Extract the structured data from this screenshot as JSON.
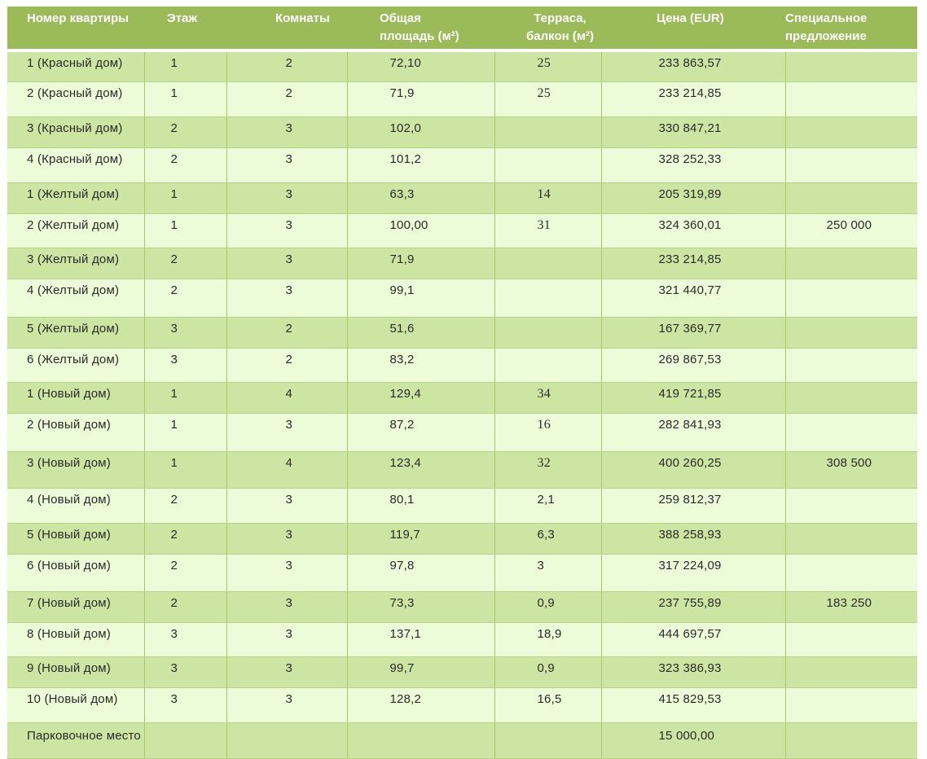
{
  "headers": [
    "Номер квартиры",
    "Этаж",
    "Комнаты",
    "Общая площадь (м²)",
    "Терраса, балкон  (м²)",
    "Цена (EUR)",
    "Специальное предложение"
  ],
  "rows": [
    [
      "1 (Красный  дом)",
      "1",
      "2",
      "72,10",
      "25",
      "233 863,57",
      ""
    ],
    [
      "2 (Красный  дом)",
      "1",
      "2",
      "71,9",
      "25",
      "233 214,85",
      ""
    ],
    [
      "3 (Красный  дом)",
      "2",
      "3",
      "102,0",
      "",
      "330 847,21",
      ""
    ],
    [
      "4 (Красный  дом)",
      "2",
      "3",
      "101,2",
      "",
      "328 252,33",
      ""
    ],
    [
      "1 (Желтый  дом)",
      "1",
      "3",
      "63,3",
      "14",
      "205 319,89",
      ""
    ],
    [
      "2 (Желтый  дом)",
      "1",
      "3",
      "100,00",
      "31",
      "324 360,01",
      "250 000"
    ],
    [
      "3 (Желтый  дом)",
      "2",
      "3",
      "71,9",
      "",
      "233 214,85",
      ""
    ],
    [
      "4 (Желтый  дом)",
      "2",
      "3",
      "99,1",
      "",
      "321 440,77",
      ""
    ],
    [
      "5 (Желтый  дом)",
      "3",
      "2",
      "51,6",
      "",
      "167 369,77",
      ""
    ],
    [
      "6 (Желтый  дом)",
      "3",
      "2",
      "83,2",
      "",
      "269 867,53",
      ""
    ],
    [
      "1 (Новый дом)",
      "1",
      "4",
      "129,4",
      "34",
      "419 721,85",
      ""
    ],
    [
      "2 (Новый дом)",
      "1",
      "3",
      "87,2",
      "16",
      "282 841,93",
      ""
    ],
    [
      "3 (Новый дом)",
      "1",
      "4",
      "123,4",
      "32",
      "400 260,25",
      "308 500"
    ],
    [
      "4 (Новый дом)",
      "2",
      "3",
      "80,1",
      "2,1",
      "259 812,37",
      ""
    ],
    [
      "5 (Новый дом)",
      "2",
      "3",
      "119,7",
      "6,3",
      "388 258,93",
      ""
    ],
    [
      "6 (Новый дом)",
      "2",
      "3",
      "97,8",
      "3",
      "317 224,09",
      ""
    ],
    [
      "7 (Новый дом)",
      "2",
      "3",
      "73,3",
      "0,9",
      "237 755,89",
      "183 250"
    ],
    [
      "8 (Новый дом)",
      "3",
      "3",
      "137,1",
      "18,9",
      "444 697,57",
      ""
    ],
    [
      "9 (Новый дом)",
      "3",
      "3",
      "99,7",
      "0,9",
      "323 386,93",
      ""
    ],
    [
      "10 (Новый дом)",
      "3",
      "3",
      "128,2",
      "16,5",
      "415 829,53",
      ""
    ],
    [
      "Парковочное место",
      "",
      "",
      "",
      "",
      "15 000,00",
      ""
    ]
  ],
  "colors": {
    "header_bg": "#9bbb59",
    "row_odd_bg": "#cde5a2",
    "row_even_bg": "#ecfcd8",
    "header_text": "#ffffff"
  }
}
